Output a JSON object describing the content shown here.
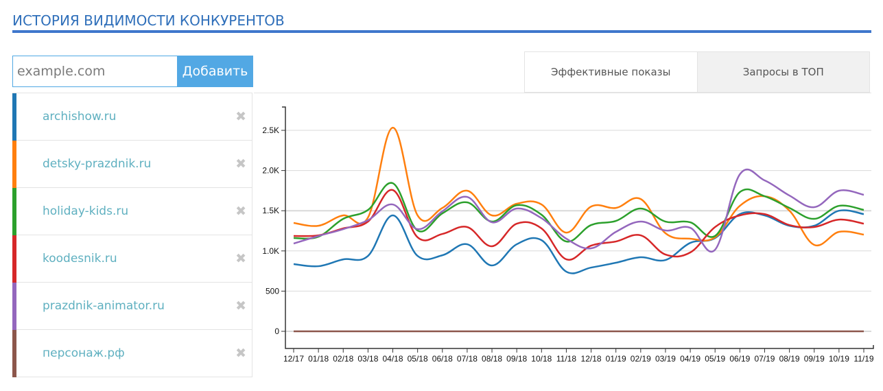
{
  "header": {
    "title": "ИСТОРИЯ ВИДИМОСТИ КОНКУРЕНТОВ"
  },
  "add_form": {
    "placeholder": "example.com",
    "value": "",
    "button_label": "Добавить"
  },
  "tabs": [
    {
      "label": "Эффективные показы",
      "active": true
    },
    {
      "label": "Запросы в ТОП",
      "active": false
    }
  ],
  "sites": [
    {
      "name": "archishow.ru",
      "color": "#1f77b4",
      "remove_icon": "close-icon"
    },
    {
      "name": "detsky-prazdnik.ru",
      "color": "#ff7f0e",
      "remove_icon": "close-icon"
    },
    {
      "name": "holiday-kids.ru",
      "color": "#2ca02c",
      "remove_icon": "close-icon"
    },
    {
      "name": "koodesnik.ru",
      "color": "#d62728",
      "remove_icon": "close-icon"
    },
    {
      "name": "prazdnik-animator.ru",
      "color": "#9467bd",
      "remove_icon": "close-icon"
    },
    {
      "name": "персонаж.рф",
      "color": "#8c564b",
      "remove_icon": "close-icon"
    }
  ],
  "chart_data": {
    "type": "line",
    "title": "",
    "xlabel": "",
    "ylabel": "",
    "ylim": [
      -200,
      2800
    ],
    "yticks": [
      0,
      500,
      1000,
      1500,
      2000,
      2500
    ],
    "ytick_labels": [
      "0",
      "500",
      "1.0K",
      "1.5K",
      "2.0K",
      "2.5K"
    ],
    "grid": true,
    "legend_position": "left-list",
    "categories": [
      "12/17",
      "01/18",
      "02/18",
      "03/18",
      "04/18",
      "05/18",
      "06/18",
      "07/18",
      "08/18",
      "09/18",
      "10/18",
      "11/18",
      "12/18",
      "01/19",
      "02/19",
      "03/19",
      "04/19",
      "05/19",
      "06/19",
      "07/19",
      "08/19",
      "09/19",
      "10/19",
      "11/19"
    ],
    "series": [
      {
        "name": "archishow.ru",
        "color": "#1f77b4",
        "values": [
          836,
          810,
          895,
          938,
          1442,
          938,
          946,
          1083,
          819,
          1083,
          1134,
          742,
          793,
          853,
          921,
          887,
          1100,
          1160,
          1458,
          1442,
          1313,
          1313,
          1500,
          1458
        ]
      },
      {
        "name": "detsky-prazdnik.ru",
        "color": "#ff7f0e",
        "values": [
          1348,
          1313,
          1442,
          1416,
          2533,
          1442,
          1535,
          1749,
          1442,
          1587,
          1578,
          1228,
          1552,
          1535,
          1646,
          1220,
          1152,
          1169,
          1561,
          1680,
          1501,
          1075,
          1237,
          1203
        ]
      },
      {
        "name": "holiday-kids.ru",
        "color": "#2ca02c",
        "values": [
          1160,
          1177,
          1399,
          1510,
          1842,
          1254,
          1467,
          1604,
          1365,
          1569,
          1450,
          1117,
          1322,
          1373,
          1527,
          1365,
          1356,
          1186,
          1732,
          1680,
          1535,
          1399,
          1561,
          1510
        ]
      },
      {
        "name": "koodesnik.ru",
        "color": "#d62728",
        "values": [
          1186,
          1194,
          1280,
          1365,
          1757,
          1169,
          1211,
          1297,
          1058,
          1339,
          1280,
          895,
          1066,
          1117,
          1194,
          955,
          981,
          1297,
          1442,
          1458,
          1322,
          1297,
          1390,
          1339
        ]
      },
      {
        "name": "prazdnik-animator.ru",
        "color": "#9467bd",
        "values": [
          1092,
          1186,
          1271,
          1382,
          1578,
          1271,
          1493,
          1672,
          1356,
          1527,
          1407,
          1152,
          1032,
          1237,
          1365,
          1254,
          1288,
          1015,
          1953,
          1877,
          1689,
          1544,
          1749,
          1698
        ]
      },
      {
        "name": "персонаж.рф",
        "color": "#8c564b",
        "values": [
          0,
          0,
          0,
          0,
          0,
          0,
          0,
          0,
          0,
          0,
          0,
          0,
          0,
          0,
          0,
          0,
          0,
          0,
          0,
          0,
          0,
          0,
          0,
          0
        ]
      }
    ]
  }
}
